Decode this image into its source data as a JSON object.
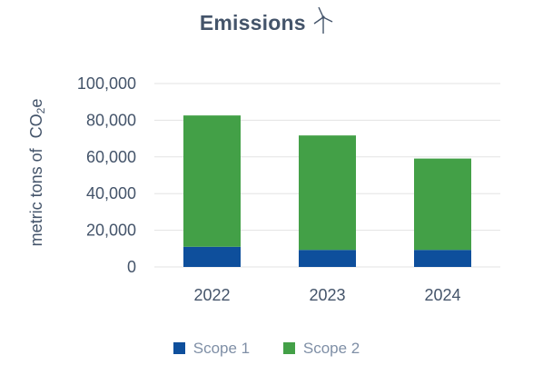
{
  "title": "Emissions",
  "icons": {
    "title_icon": "wind-turbine-icon"
  },
  "colors": {
    "scope1": "#0e4f9c",
    "scope2": "#43a047",
    "text": "#44546a",
    "legend_text": "#7f8fa6",
    "grid": "#e3e3e3"
  },
  "chart_data": {
    "type": "bar",
    "stacked": true,
    "title": "Emissions",
    "ylabel_prefix": "metric tons of",
    "ylabel_unit": "CO",
    "ylabel_unit_sub": "2",
    "ylabel_unit_suffix": "e",
    "xlabel": "",
    "categories": [
      "2022",
      "2023",
      "2024"
    ],
    "series": [
      {
        "name": "Scope 1",
        "values": [
          11000,
          9300,
          9300
        ]
      },
      {
        "name": "Scope 2",
        "values": [
          71600,
          62400,
          49800
        ]
      }
    ],
    "ylim": [
      0,
      100000
    ],
    "yticks": [
      "0",
      "20,000",
      "40,000",
      "60,000",
      "80,000",
      "100,000"
    ],
    "grid": "horizontal",
    "legend_position": "bottom"
  }
}
